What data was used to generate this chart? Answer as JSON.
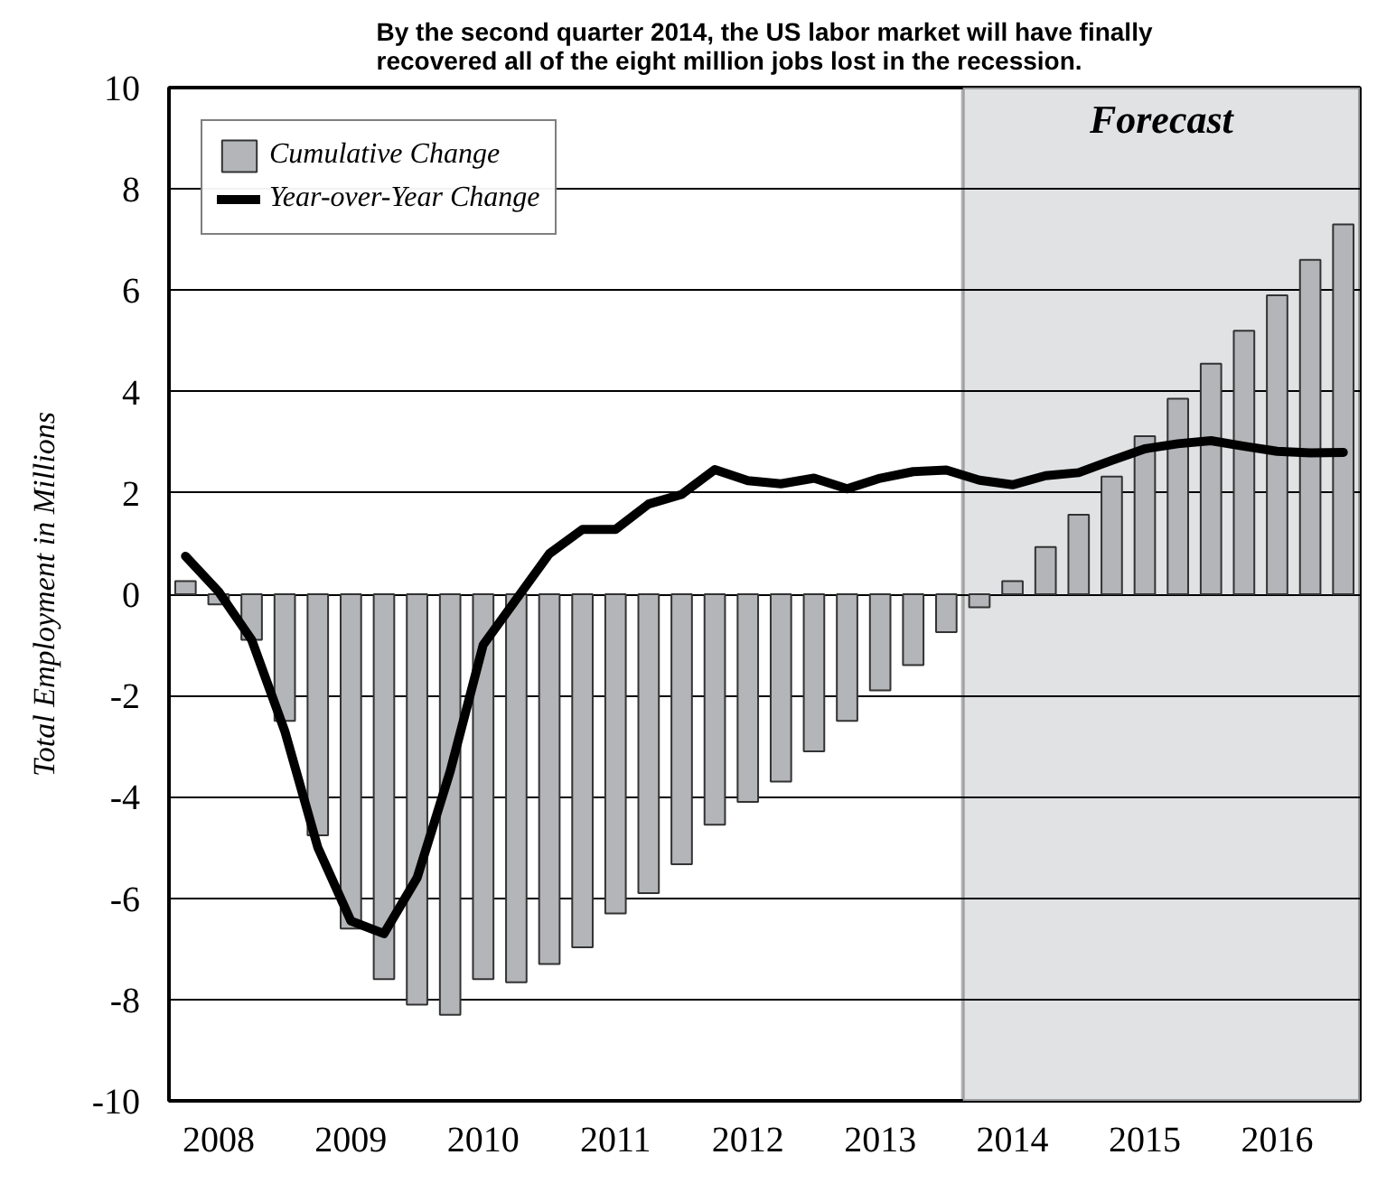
{
  "chart_data": {
    "type": "bar",
    "title": "By the second quarter 2014, the US labor market will have finally\nrecovered all of the eight million jobs lost in the recession.",
    "ylabel": "Total Employment in Millions",
    "x": [
      2007.75,
      2008.0,
      2008.25,
      2008.5,
      2008.75,
      2009.0,
      2009.25,
      2009.5,
      2009.75,
      2010.0,
      2010.25,
      2010.5,
      2010.75,
      2011.0,
      2011.25,
      2011.5,
      2011.75,
      2012.0,
      2012.25,
      2012.5,
      2012.75,
      2013.0,
      2013.25,
      2013.5,
      2013.75,
      2014.0,
      2014.25,
      2014.5,
      2014.75,
      2015.0,
      2015.25,
      2015.5,
      2015.75,
      2016.0,
      2016.25,
      2016.5
    ],
    "series": [
      {
        "name": "Cumulative Change",
        "color": "#b3b5b8",
        "values": [
          0.26,
          -0.2,
          -0.9,
          -2.5,
          -4.76,
          -6.6,
          -7.6,
          -8.1,
          -8.3,
          -7.6,
          -7.66,
          -7.3,
          -6.97,
          -6.3,
          -5.9,
          -5.33,
          -4.55,
          -4.1,
          -3.7,
          -3.1,
          -2.5,
          -1.9,
          -1.4,
          -0.75,
          -0.26,
          0.26,
          0.93,
          1.57,
          2.32,
          3.12,
          3.86,
          4.55,
          5.2,
          5.9,
          6.6,
          7.3
        ]
      },
      {
        "name": "Year-over-Year Change",
        "type": "line",
        "color": "#000000",
        "values": [
          0.75,
          0.05,
          -0.9,
          -2.7,
          -5.0,
          -6.45,
          -6.7,
          -5.6,
          -3.5,
          -1.0,
          -0.1,
          0.8,
          1.28,
          1.28,
          1.78,
          1.97,
          2.46,
          2.24,
          2.18,
          2.29,
          2.08,
          2.29,
          2.42,
          2.45,
          2.25,
          2.16,
          2.34,
          2.4,
          2.64,
          2.87,
          2.97,
          3.03,
          2.92,
          2.82,
          2.79,
          2.8
        ]
      }
    ],
    "xlim": [
      2007.625,
      2016.625
    ],
    "xticks": [
      2008,
      2009,
      2010,
      2011,
      2012,
      2013,
      2014,
      2015,
      2016
    ],
    "ylim": [
      -10,
      10
    ],
    "yticks": [
      -10,
      -8,
      -6,
      -4,
      -2,
      0,
      2,
      4,
      6,
      8,
      10
    ],
    "bands": [
      {
        "axis": "x",
        "from": 2013.625,
        "to": 2016.625,
        "label": "Forecast",
        "color": "#e1e2e4"
      }
    ],
    "grid": "y",
    "legend": "top left",
    "line_style": "solid",
    "marker": "none"
  }
}
